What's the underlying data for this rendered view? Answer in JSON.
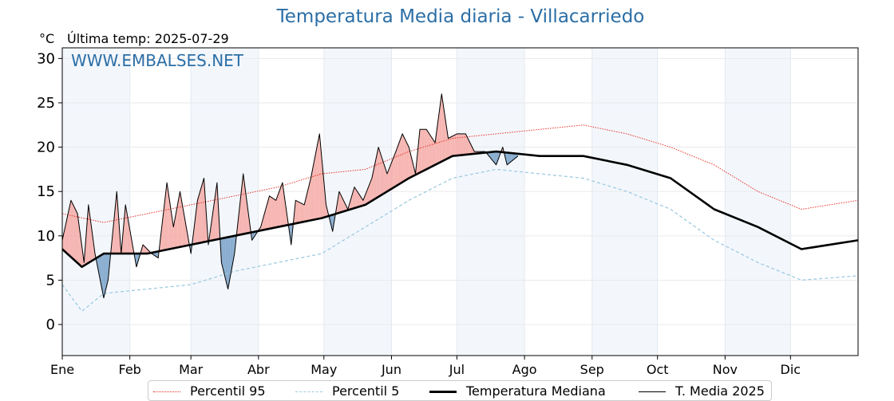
{
  "chart_data": {
    "type": "line",
    "title": "Temperatura Media diaria - Villacarriedo",
    "ylabel": "°C",
    "subtitle": "Última temp: 2025-07-29",
    "watermark": "WWW.EMBALSES.NET",
    "ylim": [
      -3.5,
      31.2
    ],
    "yticks": [
      0,
      5,
      10,
      15,
      20,
      25,
      30
    ],
    "x_unit": "day of year",
    "xlim": [
      1,
      366
    ],
    "months": [
      "Ene",
      "Feb",
      "Mar",
      "Abr",
      "May",
      "Jun",
      "Jul",
      "Ago",
      "Sep",
      "Oct",
      "Nov",
      "Dic"
    ],
    "month_start_days": [
      1,
      32,
      60,
      91,
      121,
      152,
      182,
      213,
      244,
      274,
      305,
      335
    ],
    "grid": true,
    "legend_position": "bottom",
    "series": [
      {
        "name": "Percentil 95",
        "color": "#e8332a",
        "style": "dotted",
        "days": [
          1,
          20,
          40,
          60,
          80,
          100,
          120,
          140,
          160,
          180,
          200,
          220,
          240,
          260,
          280,
          300,
          320,
          340,
          366
        ],
        "values": [
          12.5,
          11.5,
          12.5,
          13.5,
          14.5,
          15.5,
          17.0,
          17.5,
          19.5,
          21.0,
          21.5,
          22.0,
          22.5,
          21.5,
          20.0,
          18.0,
          15.0,
          13.0,
          14.0
        ]
      },
      {
        "name": "Percentil 5",
        "color": "#9ecae1",
        "style": "dashed",
        "days": [
          1,
          10,
          20,
          40,
          60,
          80,
          100,
          120,
          140,
          160,
          180,
          200,
          220,
          240,
          260,
          280,
          300,
          320,
          340,
          366
        ],
        "values": [
          4.5,
          1.5,
          3.5,
          4.0,
          4.5,
          6.0,
          7.0,
          8.0,
          11.0,
          14.0,
          16.5,
          17.5,
          17.0,
          16.5,
          15.0,
          13.0,
          9.5,
          7.0,
          5.0,
          5.5
        ]
      },
      {
        "name": "Temperatura Mediana",
        "color": "#000000",
        "style": "thick",
        "days": [
          1,
          10,
          20,
          40,
          60,
          80,
          100,
          120,
          140,
          160,
          180,
          200,
          220,
          240,
          260,
          280,
          300,
          320,
          340,
          366
        ],
        "values": [
          8.5,
          6.5,
          8.0,
          8.0,
          9.0,
          10.0,
          11.0,
          12.0,
          13.5,
          16.5,
          19.0,
          19.5,
          19.0,
          19.0,
          18.0,
          16.5,
          13.0,
          11.0,
          8.5,
          9.5
        ]
      },
      {
        "name": "T. Media 2025",
        "color": "#000000",
        "style": "thin",
        "days": [
          1,
          5,
          8,
          11,
          13,
          16,
          20,
          22,
          26,
          28,
          30,
          35,
          38,
          42,
          45,
          49,
          52,
          55,
          60,
          63,
          66,
          68,
          72,
          74,
          77,
          80,
          84,
          88,
          92,
          96,
          99,
          102,
          106,
          108,
          112,
          115,
          119,
          122,
          125,
          128,
          132,
          135,
          139,
          143,
          146,
          150,
          154,
          157,
          160,
          163,
          165,
          168,
          172,
          175,
          178,
          182,
          186,
          190,
          195,
          200,
          203,
          205,
          210
        ],
        "values": [
          9.5,
          14.0,
          12.5,
          7.0,
          13.5,
          8.0,
          3.0,
          5.0,
          15.0,
          8.0,
          13.5,
          6.5,
          9.0,
          8.0,
          7.5,
          16.0,
          11.0,
          15.0,
          8.0,
          14.0,
          16.5,
          9.0,
          16.0,
          7.0,
          4.0,
          8.0,
          17.0,
          9.5,
          11.0,
          14.5,
          14.0,
          16.0,
          9.0,
          14.0,
          13.5,
          16.5,
          21.5,
          13.5,
          10.5,
          15.0,
          13.0,
          15.5,
          14.0,
          16.5,
          20.0,
          17.0,
          19.5,
          21.5,
          20.0,
          17.0,
          22.0,
          22.0,
          20.5,
          26.0,
          21.0,
          21.5,
          21.5,
          19.5,
          19.5,
          18.0,
          20.0,
          18.0,
          19.0
        ]
      }
    ]
  }
}
